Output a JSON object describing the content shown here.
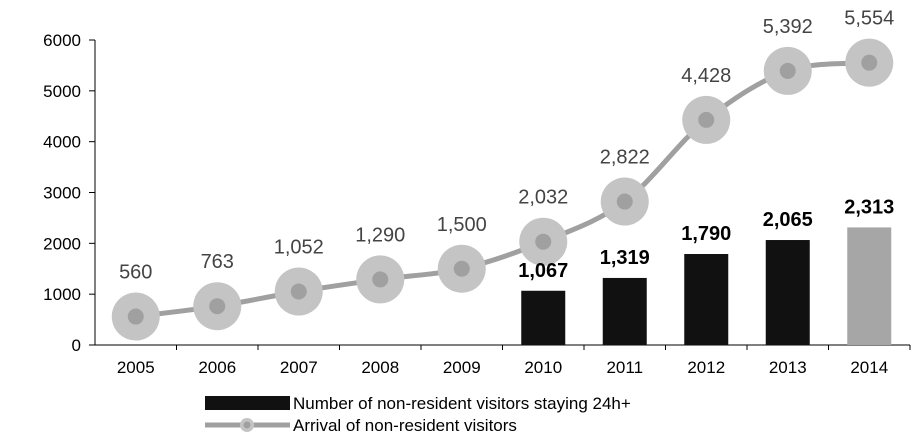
{
  "chart_data": {
    "type": "bar",
    "categories": [
      "2005",
      "2006",
      "2007",
      "2008",
      "2009",
      "2010",
      "2011",
      "2012",
      "2013",
      "2014"
    ],
    "ylim": [
      0,
      6000
    ],
    "yticks": [
      "0",
      "1000",
      "2000",
      "3000",
      "4000",
      "5000",
      "6000"
    ],
    "grid": false,
    "legend_position": "bottom",
    "series": [
      {
        "name": "Number of non-resident visitors staying 24h+",
        "kind": "bar",
        "values": [
          null,
          null,
          null,
          null,
          null,
          1067,
          1319,
          1790,
          2065,
          2313
        ],
        "labels": [
          "",
          "",
          "",
          "",
          "",
          "1,067",
          "1,319",
          "1,790",
          "2,065",
          "2,313"
        ],
        "color": "#111111",
        "highlight_color": "#a6a6a6"
      },
      {
        "name": "Arrival of non-resident visitors",
        "kind": "line",
        "values": [
          560,
          763,
          1052,
          1290,
          1500,
          2032,
          2822,
          4428,
          5392,
          5554
        ],
        "labels": [
          "560",
          "763",
          "1,052",
          "1,290",
          "1,500",
          "2,032",
          "2,822",
          "4,428",
          "5,392",
          "5,554"
        ],
        "color": "#a0a0a0",
        "marker_color": "#c4c4c4"
      }
    ]
  }
}
